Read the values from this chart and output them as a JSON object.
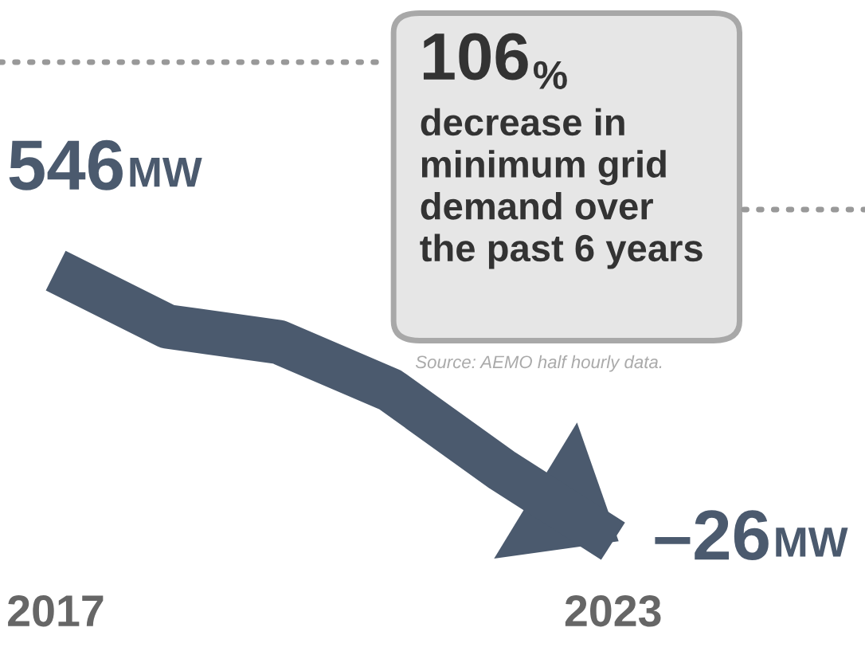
{
  "chart_data": {
    "type": "line",
    "categories": [
      "2017",
      null,
      null,
      null,
      null,
      "2023"
    ],
    "series": [
      {
        "color": "#4b5a6e",
        "values": [
          546,
          428,
          395,
          294,
          125,
          -26
        ],
        "value_labels": [
          "546MW",
          null,
          null,
          null,
          null,
          "–26MW"
        ]
      }
    ],
    "tick_labels": "x",
    "marker": "none",
    "line_style": "solid",
    "annotations": [
      "106%",
      "decrease in\nminimum grid\ndemand over\nthe past 6 years",
      "Source: AEMO half hourly data."
    ]
  }
}
